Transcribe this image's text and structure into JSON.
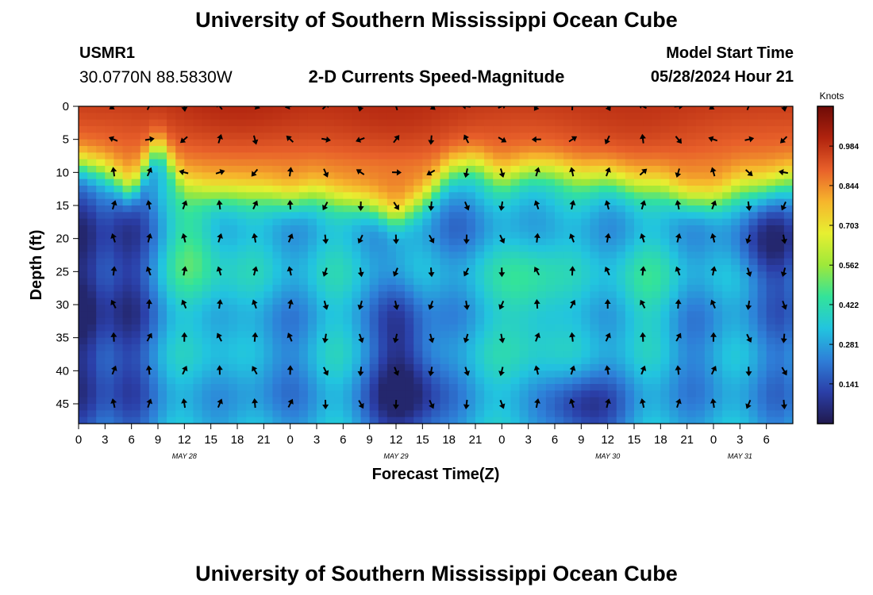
{
  "header": {
    "title": "University of Southern Mississippi Ocean Cube",
    "station_id": "USMR1",
    "coordinates": "30.0770N  88.5830W",
    "subtitle": "2-D Currents Speed-Magnitude",
    "model_start_label": "Model Start Time",
    "model_start_value": "05/28/2024 Hour 21"
  },
  "footer": {
    "title": "University of Southern Mississippi Ocean Cube"
  },
  "chart_data": {
    "type": "heatmap",
    "title": "2-D Currents Speed-Magnitude",
    "xlabel": "Forecast Time(Z)",
    "ylabel": "Depth (ft)",
    "x_unit": "forecast hours",
    "xlim": [
      0,
      81
    ],
    "ylim": [
      48,
      0
    ],
    "x_ticks": [
      {
        "v": 0,
        "label": "0"
      },
      {
        "v": 3,
        "label": "3"
      },
      {
        "v": 6,
        "label": "6"
      },
      {
        "v": 9,
        "label": "9"
      },
      {
        "v": 12,
        "label": "12"
      },
      {
        "v": 15,
        "label": "15"
      },
      {
        "v": 18,
        "label": "18"
      },
      {
        "v": 21,
        "label": "21"
      },
      {
        "v": 24,
        "label": "0"
      },
      {
        "v": 27,
        "label": "3"
      },
      {
        "v": 30,
        "label": "6"
      },
      {
        "v": 33,
        "label": "9"
      },
      {
        "v": 36,
        "label": "12"
      },
      {
        "v": 39,
        "label": "15"
      },
      {
        "v": 42,
        "label": "18"
      },
      {
        "v": 45,
        "label": "21"
      },
      {
        "v": 48,
        "label": "0"
      },
      {
        "v": 51,
        "label": "3"
      },
      {
        "v": 54,
        "label": "6"
      },
      {
        "v": 57,
        "label": "9"
      },
      {
        "v": 60,
        "label": "12"
      },
      {
        "v": 63,
        "label": "15"
      },
      {
        "v": 66,
        "label": "18"
      },
      {
        "v": 69,
        "label": "21"
      },
      {
        "v": 72,
        "label": "0"
      },
      {
        "v": 75,
        "label": "3"
      },
      {
        "v": 78,
        "label": "6"
      }
    ],
    "date_labels": [
      {
        "v": 12,
        "label": "MAY 28"
      },
      {
        "v": 36,
        "label": "MAY 29"
      },
      {
        "v": 60,
        "label": "MAY 30"
      },
      {
        "v": 75,
        "label": "MAY 31"
      }
    ],
    "y_ticks": [
      0,
      5,
      10,
      15,
      20,
      25,
      30,
      35,
      40,
      45
    ],
    "colorbar": {
      "label": "Knots",
      "range": [
        0,
        1.125
      ],
      "ticks": [
        0.141,
        0.281,
        0.422,
        0.562,
        0.703,
        0.844,
        0.984
      ],
      "colors": [
        "#20194d",
        "#2b3fa8",
        "#2e7fd8",
        "#22c4df",
        "#33e39a",
        "#9ee83a",
        "#e7ef31",
        "#f6b52c",
        "#e8602a",
        "#b0230e",
        "#6e0b07"
      ]
    },
    "surface_layer_depth_ft": [
      9,
      10,
      13,
      6,
      12,
      13,
      13,
      13,
      14,
      13,
      14,
      15,
      17,
      14,
      10,
      9,
      11,
      10,
      10,
      11,
      11,
      12,
      12,
      14,
      14,
      12,
      12,
      11
    ]
  }
}
